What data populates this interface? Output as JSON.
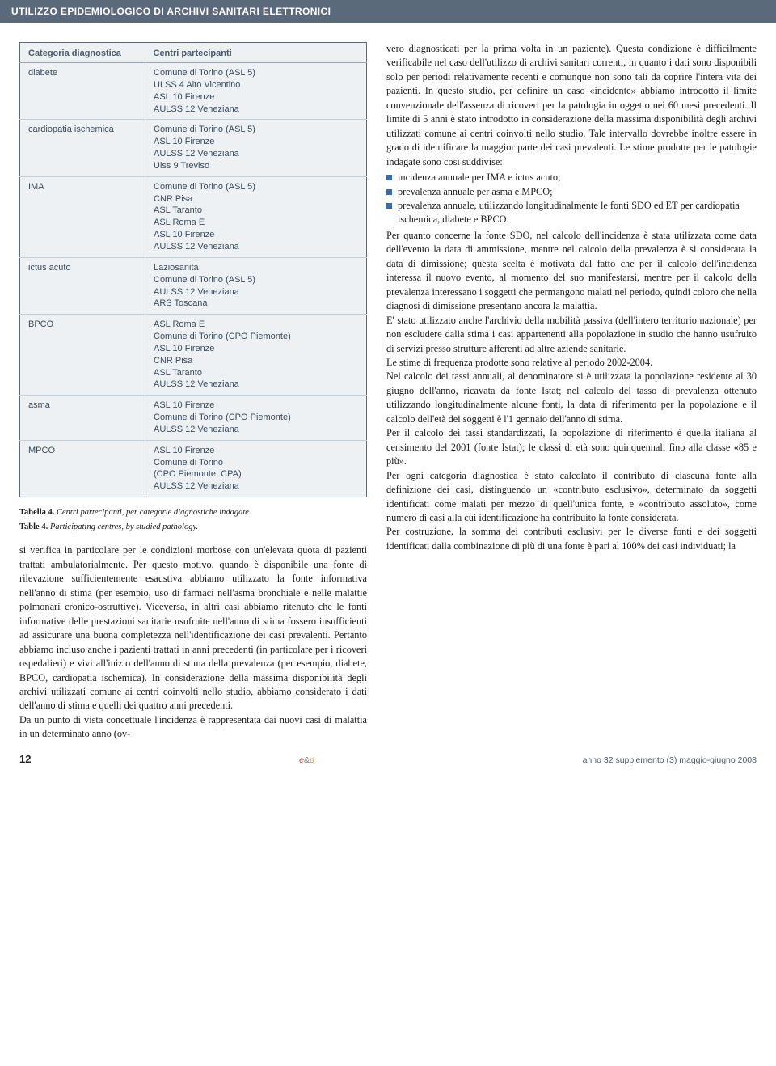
{
  "header_bar": "UTILIZZO EPIDEMIOLOGICO DI ARCHIVI SANITARI ELETTRONICI",
  "table": {
    "col1_header": "Categoria diagnostica",
    "col2_header": "Centri partecipanti",
    "rows": [
      {
        "cat": "diabete",
        "centres": "Comune di Torino (ASL 5)\nULSS 4 Alto Vicentino\nASL 10 Firenze\nAULSS 12 Veneziana"
      },
      {
        "cat": "cardiopatia ischemica",
        "centres": "Comune di Torino (ASL 5)\nASL 10 Firenze\nAULSS 12 Veneziana\nUlss 9 Treviso"
      },
      {
        "cat": "IMA",
        "centres": "Comune di Torino (ASL 5)\nCNR Pisa\nASL Taranto\nASL Roma E\nASL 10 Firenze\nAULSS 12 Veneziana"
      },
      {
        "cat": "ictus acuto",
        "centres": "Laziosanità\nComune di Torino (ASL 5)\nAULSS 12 Veneziana\nARS Toscana"
      },
      {
        "cat": "BPCO",
        "centres": "ASL Roma E\nComune di Torino (CPO Piemonte)\nASL 10 Firenze\nCNR Pisa\nASL Taranto\nAULSS 12 Veneziana"
      },
      {
        "cat": "asma",
        "centres": "ASL 10 Firenze\nComune di Torino (CPO Piemonte)\nAULSS 12 Veneziana"
      },
      {
        "cat": "MPCO",
        "centres": "ASL 10 Firenze\nComune di Torino\n  (CPO Piemonte, CPA)\nAULSS 12 Veneziana"
      }
    ]
  },
  "caption_it": "Tabella 4. Centri partecipanti, per categorie diagnostiche indagate.",
  "caption_en": "Table 4. Participating centres, by studied pathology.",
  "left_body": "si verifica in particolare per le condizioni morbose con un'elevata quota di pazienti trattati ambulatorialmente. Per questo motivo, quando è disponibile una fonte di rilevazione sufficientemente esaustiva abbiamo utilizzato la fonte informativa nell'anno di stima (per esempio, uso di farmaci nell'asma bronchiale e nelle malattie polmonari cronico-ostruttive). Viceversa, in altri casi abbiamo ritenuto che le fonti informative delle prestazioni sanitarie usufruite nell'anno di stima fossero insufficienti ad assicurare una buona completezza nell'identificazione dei casi prevalenti. Pertanto abbiamo incluso anche i pazienti trattati in anni precedenti (in particolare per i ricoveri ospedalieri) e vivi all'inizio dell'anno di stima della prevalenza (per esempio, diabete, BPCO, cardiopatia ischemica). In considerazione della massima disponibilità degli archivi utilizzati comune ai centri coinvolti nello studio, abbiamo considerato i dati dell'anno di stima e quelli dei quattro anni precedenti.\nDa un punto di vista concettuale l'incidenza è rappresentata dai nuovi casi di malattia in un determinato anno (ov-",
  "right_p1": "vero diagnosticati per la prima volta in un paziente). Questa condizione è difficilmente verificabile nel caso dell'utilizzo di archivi sanitari correnti, in quanto i dati sono disponibili solo per periodi relativamente recenti e comunque non sono tali da coprire l'intera vita dei pazienti. In questo studio, per definire un caso «incidente» abbiamo introdotto il limite convenzionale dell'assenza di ricoveri per la patologia in oggetto nei 60 mesi precedenti. Il limite di 5 anni è stato introdotto in considerazione della massima disponibilità degli archivi utilizzati comune ai centri coinvolti nello studio. Tale intervallo dovrebbe inoltre essere in grado di identificare la maggior parte dei casi prevalenti. Le stime prodotte per le patologie indagate sono così suddivise:",
  "bullets": {
    "b1": "incidenza annuale per IMA e ictus acuto;",
    "b2": "prevalenza annuale per asma e MPCO;",
    "b3": "prevalenza annuale, utilizzando longitudinalmente le fonti SDO ed ET per cardiopatia ischemica, diabete e BPCO."
  },
  "right_p2": "Per quanto concerne la fonte SDO, nel calcolo dell'incidenza è stata utilizzata come data dell'evento la data di ammissione, mentre nel calcolo della prevalenza è si considerata la data di dimissione; questa scelta è motivata dal fatto che per il calcolo dell'incidenza interessa il nuovo evento, al momento del suo manifestarsi, mentre per il calcolo della prevalenza interessano i soggetti che permangono malati nel periodo, quindi coloro che nella diagnosi di dimissione presentano ancora la malattia.",
  "right_p3": "E' stato utilizzato anche l'archivio della mobilità passiva (dell'intero territorio nazionale) per non escludere dalla stima i casi appartenenti alla popolazione in studio che hanno usufruito di servizi presso strutture afferenti ad altre aziende sanitarie.",
  "right_p4": "Le stime di frequenza prodotte sono relative al periodo 2002-2004.",
  "right_p5": "Nel calcolo dei tassi annuali, al denominatore si è utilizzata la popolazione residente al 30 giugno dell'anno, ricavata da fonte Istat; nel calcolo del tasso di prevalenza ottenuto utilizzando longitudinalmente alcune fonti, la data di riferimento per la popolazione e il calcolo dell'età dei soggetti è l'1 gennaio dell'anno di stima.",
  "right_p6": "Per il calcolo dei tassi standardizzati, la popolazione di riferimento è quella italiana al censimento del 2001 (fonte Istat); le classi di età sono quinquennali fino alla classe «85 e più».",
  "right_p7": "Per ogni categoria diagnostica è stato calcolato il contributo di ciascuna fonte alla definizione dei casi, distinguendo un «contributo esclusivo», determinato da soggetti identificati come malati per mezzo di quell'unica fonte, e «contributo assoluto», come numero di casi alla cui identificazione ha contribuito la fonte considerata.",
  "right_p8": "Per costruzione, la somma dei contributi esclusivi per le diverse fonti e dei soggetti identificati dalla combinazione di più di una fonte è pari al 100% dei casi individuati; la",
  "footer": {
    "page": "12",
    "issue": "anno 32 supplemento (3) maggio-giugno 2008"
  }
}
